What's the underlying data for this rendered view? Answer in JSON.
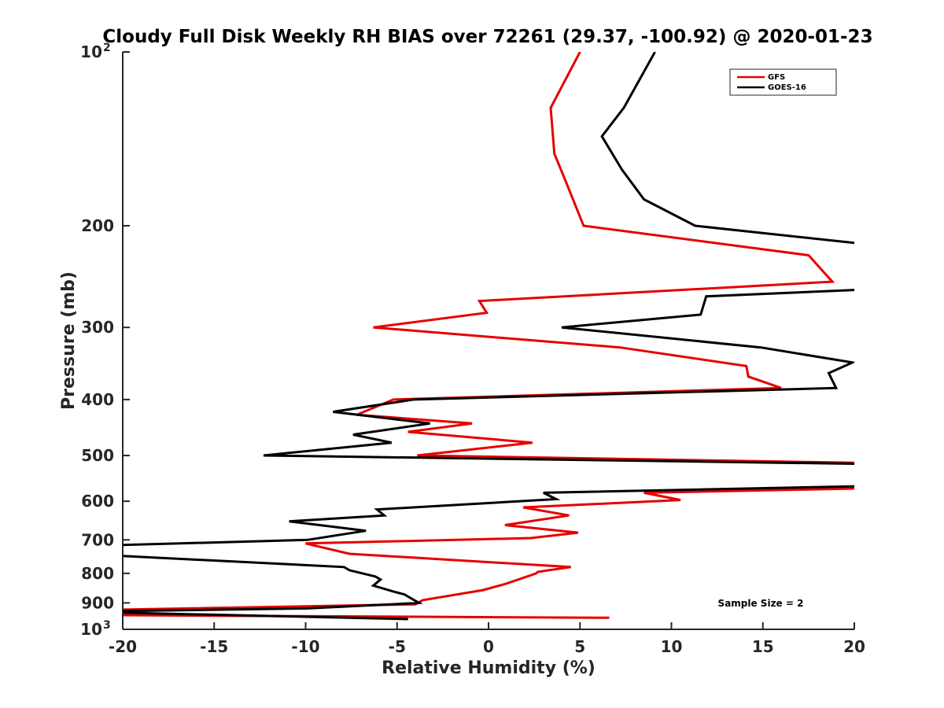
{
  "chart_data": {
    "type": "line",
    "title": "Cloudy Full Disk Weekly RH BIAS over 72261 (29.37, -100.92) @ 2020-01-23",
    "xlabel": "Relative Humidity (%)",
    "ylabel": "Pressure (mb)",
    "xlim": [
      -20,
      20
    ],
    "ylim": [
      1000,
      100
    ],
    "y_scale": "log",
    "y_reversed": true,
    "grid": false,
    "legend_position": "top-right",
    "annotation": "Sample Size = 2",
    "x_ticks": [
      "-20",
      "-15",
      "-10",
      "-5",
      "0",
      "5",
      "10",
      "15",
      "20"
    ],
    "y_ticks": [
      {
        "value": 100,
        "base": "10",
        "exp": "2"
      },
      {
        "value": 200,
        "label": "200"
      },
      {
        "value": 300,
        "label": "300"
      },
      {
        "value": 400,
        "label": "400"
      },
      {
        "value": 500,
        "label": "500"
      },
      {
        "value": 600,
        "label": "600"
      },
      {
        "value": 700,
        "label": "700"
      },
      {
        "value": 800,
        "label": "800"
      },
      {
        "value": 900,
        "label": "900"
      },
      {
        "value": 1000,
        "base": "10",
        "exp": "3"
      }
    ],
    "series": [
      {
        "name": "GFS",
        "color": "#e60000",
        "points": [
          [
            5.0,
            100
          ],
          [
            3.4,
            125
          ],
          [
            3.6,
            150
          ],
          [
            4.3,
            170
          ],
          [
            5.2,
            200
          ],
          [
            17.5,
            225
          ],
          [
            18.8,
            250
          ],
          [
            -0.5,
            270
          ],
          [
            -0.1,
            283
          ],
          [
            -6.3,
            300
          ],
          [
            7.2,
            325
          ],
          [
            14.1,
            350
          ],
          [
            14.2,
            365
          ],
          [
            16.0,
            382
          ],
          [
            -5.2,
            400
          ],
          [
            -7.2,
            425
          ],
          [
            -0.9,
            440
          ],
          [
            -4.4,
            455
          ],
          [
            2.4,
            475
          ],
          [
            -3.9,
            500
          ],
          [
            20.5,
            515
          ],
          [
            20.5,
            570
          ],
          [
            8.5,
            580
          ],
          [
            10.5,
            597
          ],
          [
            1.9,
            615
          ],
          [
            4.4,
            635
          ],
          [
            0.9,
            660
          ],
          [
            4.9,
            680
          ],
          [
            2.3,
            695
          ],
          [
            -10.0,
            710
          ],
          [
            -7.6,
            740
          ],
          [
            4.5,
            780
          ],
          [
            2.7,
            795
          ],
          [
            2.6,
            800
          ],
          [
            0.9,
            835
          ],
          [
            -0.3,
            855
          ],
          [
            -3.6,
            890
          ],
          [
            -4.0,
            905
          ],
          [
            -20.5,
            925
          ],
          [
            -20.5,
            945
          ],
          [
            6.6,
            955
          ]
        ]
      },
      {
        "name": "GOES-16",
        "color": "#000000",
        "points": [
          [
            9.1,
            100
          ],
          [
            7.4,
            125
          ],
          [
            6.2,
            140
          ],
          [
            7.3,
            160
          ],
          [
            8.5,
            180
          ],
          [
            11.3,
            200
          ],
          [
            20.5,
            215
          ],
          [
            20.5,
            258
          ],
          [
            11.9,
            265
          ],
          [
            11.6,
            285
          ],
          [
            4.0,
            300
          ],
          [
            14.9,
            325
          ],
          [
            19.9,
            345
          ],
          [
            18.6,
            360
          ],
          [
            19.0,
            382
          ],
          [
            -4.1,
            400
          ],
          [
            -8.5,
            420
          ],
          [
            -3.2,
            440
          ],
          [
            -7.4,
            460
          ],
          [
            -5.3,
            475
          ],
          [
            -12.3,
            500
          ],
          [
            20.5,
            517
          ],
          [
            20.5,
            565
          ],
          [
            3.0,
            580
          ],
          [
            3.7,
            595
          ],
          [
            -6.1,
            620
          ],
          [
            -5.7,
            635
          ],
          [
            -10.9,
            650
          ],
          [
            -6.7,
            675
          ],
          [
            -9.9,
            700
          ],
          [
            -20.5,
            715
          ],
          [
            -20.5,
            745
          ],
          [
            -7.9,
            780
          ],
          [
            -7.6,
            790
          ],
          [
            -6.2,
            810
          ],
          [
            -5.9,
            820
          ],
          [
            -6.3,
            840
          ],
          [
            -5.2,
            860
          ],
          [
            -4.6,
            870
          ],
          [
            -3.8,
            900
          ],
          [
            -9.9,
            920
          ],
          [
            -20.5,
            930
          ],
          [
            -20.5,
            935
          ],
          [
            -4.4,
            960
          ]
        ]
      }
    ]
  }
}
